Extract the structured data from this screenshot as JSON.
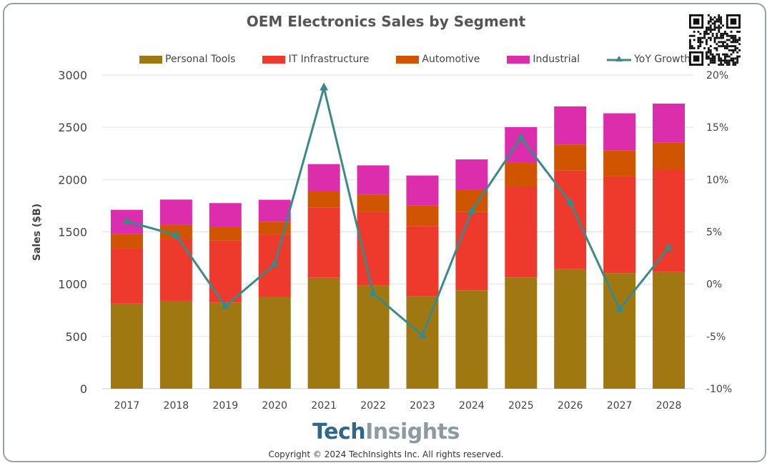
{
  "chart_data": {
    "type": "bar",
    "stacked": true,
    "title": "OEM Electronics Sales by Segment",
    "xlabel": "",
    "ylabel": "Sales ($B)",
    "ylim": [
      0,
      3000
    ],
    "yticks": [
      "0",
      "500",
      "1000",
      "1500",
      "2000",
      "2500",
      "3000"
    ],
    "y2lim": [
      -10,
      20
    ],
    "y2ticks": [
      "-10%",
      "-5%",
      "0%",
      "5%",
      "10%",
      "15%",
      "20%"
    ],
    "grid": true,
    "legend_position": "top",
    "categories": [
      "2017",
      "2018",
      "2019",
      "2020",
      "2021",
      "2022",
      "2023",
      "2024",
      "2025",
      "2026",
      "2027",
      "2028"
    ],
    "series": [
      {
        "name": "Personal Tools",
        "color": "#a07812",
        "values": [
          814,
          841,
          825,
          875,
          1061,
          986,
          884,
          941,
          1064,
          1143,
          1105,
          1116
        ]
      },
      {
        "name": "IT Infrastructure",
        "color": "#ee3a2c",
        "values": [
          529,
          591,
          591,
          598,
          673,
          705,
          673,
          748,
          863,
          943,
          925,
          975
        ]
      },
      {
        "name": "Automotive",
        "color": "#d15500",
        "values": [
          134,
          136,
          132,
          125,
          152,
          166,
          195,
          211,
          239,
          250,
          250,
          264
        ]
      },
      {
        "name": "Industrial",
        "color": "#dc2eac",
        "values": [
          234,
          241,
          227,
          209,
          262,
          279,
          287,
          293,
          336,
          364,
          354,
          372
        ]
      }
    ],
    "line_series": {
      "name": "YoY Growth",
      "color": "#3a8a8a",
      "axis": "right",
      "unit": "%",
      "values": [
        6.0,
        4.7,
        -2.1,
        1.9,
        18.8,
        -0.9,
        -4.9,
        7.0,
        14.0,
        7.8,
        -2.4,
        3.5
      ]
    }
  },
  "branding": {
    "logo_part1": "Tech",
    "logo_part2": "Insights",
    "copyright": "Copyright © 2024 TechInsights Inc.  All rights reserved."
  }
}
